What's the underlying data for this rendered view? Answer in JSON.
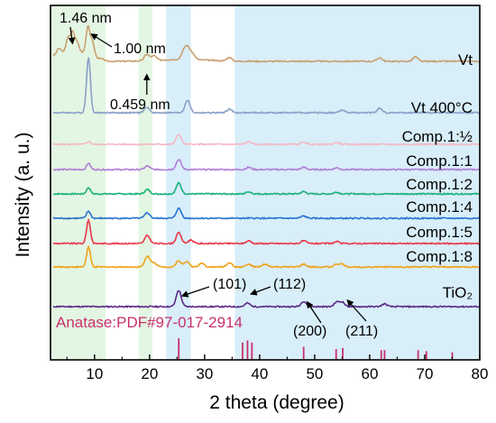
{
  "chart_data": {
    "type": "line",
    "xlabel": "2 theta (degree)",
    "ylabel": "Intensity (a. u.)",
    "xlim": [
      2,
      80
    ],
    "x_ticks": [
      10,
      20,
      30,
      40,
      50,
      60,
      70,
      80
    ],
    "bands": [
      {
        "x0": 2,
        "x1": 12,
        "color": "#e3f6e3"
      },
      {
        "x0": 18,
        "x1": 20.5,
        "color": "#e3f6e3"
      },
      {
        "x0": 23,
        "x1": 27.5,
        "color": "#d8eef9"
      },
      {
        "x0": 35.5,
        "x1": 80,
        "color": "#d8eef9"
      }
    ],
    "series": [
      {
        "name": "Vt",
        "color": "#c9a070",
        "peaks": [
          [
            3.5,
            6
          ],
          [
            5.2,
            14
          ],
          [
            6.0,
            20
          ],
          [
            6.8,
            10
          ],
          [
            8.8,
            30
          ],
          [
            9.6,
            16
          ],
          [
            19.5,
            7
          ],
          [
            20.8,
            5
          ],
          [
            26.2,
            8
          ],
          [
            26.9,
            12
          ],
          [
            27.8,
            6
          ],
          [
            34.5,
            4
          ],
          [
            61.8,
            4
          ],
          [
            68.3,
            5
          ]
        ]
      },
      {
        "name": "Vt  400°C",
        "color": "#8aa0c8",
        "peaks": [
          [
            8.9,
            62
          ],
          [
            19.5,
            6
          ],
          [
            26.9,
            14
          ],
          [
            34.5,
            4
          ],
          [
            55,
            3
          ],
          [
            61.8,
            5
          ]
        ]
      },
      {
        "name": "Comp.1:½",
        "color": "#f4b8c4",
        "peaks": [
          [
            8.9,
            3
          ],
          [
            25.3,
            11
          ],
          [
            38,
            3
          ],
          [
            48,
            2.5
          ],
          [
            54,
            2
          ]
        ]
      },
      {
        "name": "Comp.1:1",
        "color": "#b07ed8",
        "peaks": [
          [
            8.9,
            7
          ],
          [
            19.6,
            4
          ],
          [
            25.3,
            11
          ],
          [
            38,
            2.5
          ],
          [
            48,
            2.5
          ],
          [
            54,
            2
          ]
        ]
      },
      {
        "name": "Comp.1:2",
        "color": "#1ab07a",
        "peaks": [
          [
            8.9,
            7
          ],
          [
            19.6,
            5
          ],
          [
            25.3,
            12
          ],
          [
            38,
            2.5
          ],
          [
            48,
            2.5
          ],
          [
            54,
            2
          ]
        ]
      },
      {
        "name": "Comp.1:4",
        "color": "#2874cc",
        "peaks": [
          [
            8.9,
            8
          ],
          [
            19.6,
            6
          ],
          [
            25.3,
            11
          ],
          [
            48,
            2.5
          ]
        ]
      },
      {
        "name": "Comp.1:5",
        "color": "#e8384a",
        "peaks": [
          [
            8.9,
            26
          ],
          [
            19.6,
            9
          ],
          [
            25.3,
            12
          ],
          [
            27.5,
            4
          ],
          [
            38,
            3
          ],
          [
            48,
            3
          ],
          [
            54,
            2
          ]
        ]
      },
      {
        "name": "Comp.1:8",
        "color": "#f0a21a",
        "peaks": [
          [
            8.9,
            22
          ],
          [
            19.6,
            12
          ],
          [
            20.8,
            5
          ],
          [
            25.3,
            7
          ],
          [
            26.8,
            6
          ],
          [
            29.5,
            4
          ],
          [
            34.5,
            5
          ],
          [
            38,
            3
          ],
          [
            41,
            3
          ],
          [
            48,
            3
          ],
          [
            54,
            3
          ],
          [
            55,
            3
          ]
        ]
      },
      {
        "name": "TiO₂",
        "color": "#5b2a86",
        "peaks": [
          [
            25.3,
            18
          ],
          [
            37.8,
            4
          ],
          [
            48,
            6
          ],
          [
            54,
            5
          ],
          [
            55,
            5
          ],
          [
            62.7,
            3
          ]
        ]
      }
    ],
    "reference": {
      "label": "Anatase:PDF#97-017-2914",
      "color": "#c8306c",
      "lines": [
        [
          25.3,
          1.0
        ],
        [
          36.9,
          0.8
        ],
        [
          37.8,
          0.9
        ],
        [
          38.6,
          0.8
        ],
        [
          48.0,
          0.6
        ],
        [
          53.9,
          0.5
        ],
        [
          55.1,
          0.55
        ],
        [
          62.1,
          0.45
        ],
        [
          62.7,
          0.45
        ],
        [
          68.8,
          0.45
        ],
        [
          70.3,
          0.4
        ],
        [
          75.0,
          0.35
        ]
      ]
    },
    "annotations": [
      {
        "text": "1.46 nm",
        "x": 6.0
      },
      {
        "text": "1.00 nm",
        "x": 8.8
      },
      {
        "text": "0.459 nm",
        "x": 19.5
      },
      {
        "text": "(101)",
        "x": 25.3
      },
      {
        "text": "(112)",
        "x": 37.8
      },
      {
        "text": "(200)",
        "x": 48.0
      },
      {
        "text": "(211)",
        "x": 55.0
      }
    ]
  }
}
